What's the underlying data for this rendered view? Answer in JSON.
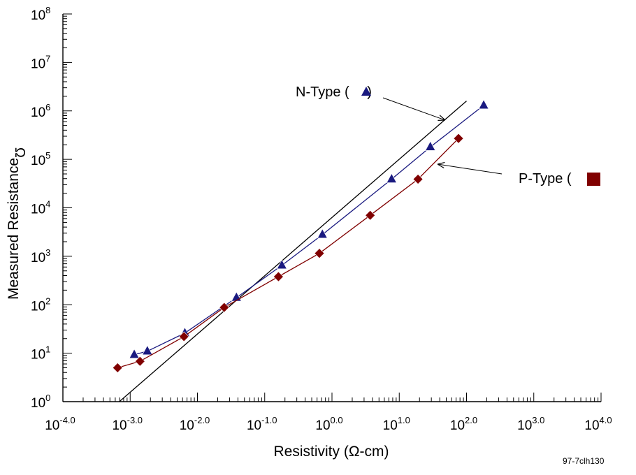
{
  "chart_data": {
    "type": "scatter",
    "xscale": "log",
    "yscale": "log",
    "xlim": [
      0.0001,
      10000
    ],
    "ylim": [
      1,
      100000000
    ],
    "xlabel": "Resistivity (Ω-cm)",
    "ylabel": "Measured Resistance",
    "ylabel_symbol": "Ʊ",
    "x_ticks": [
      {
        "base": "10",
        "exp": "-4.0"
      },
      {
        "base": "10",
        "exp": "-3.0"
      },
      {
        "base": "10",
        "exp": "-2.0"
      },
      {
        "base": "10",
        "exp": "-1.0"
      },
      {
        "base": "10",
        "exp": "0.0"
      },
      {
        "base": "10",
        "exp": "1.0"
      },
      {
        "base": "10",
        "exp": "2.0"
      },
      {
        "base": "10",
        "exp": "3.0"
      },
      {
        "base": "10",
        "exp": "4.0"
      }
    ],
    "y_ticks": [
      {
        "base": "10",
        "exp": "0"
      },
      {
        "base": "10",
        "exp": "1"
      },
      {
        "base": "10",
        "exp": "2"
      },
      {
        "base": "10",
        "exp": "3"
      },
      {
        "base": "10",
        "exp": "4"
      },
      {
        "base": "10",
        "exp": "5"
      },
      {
        "base": "10",
        "exp": "6"
      },
      {
        "base": "10",
        "exp": "7"
      },
      {
        "base": "10",
        "exp": "8"
      }
    ],
    "series": [
      {
        "name": "N-Type",
        "marker": "triangle",
        "color": "#1a1a80",
        "x": [
          0.00115,
          0.0018,
          0.0065,
          0.038,
          0.18,
          0.72,
          7.7,
          29,
          180
        ],
        "y": [
          9.3,
          11,
          26,
          140,
          650,
          2800,
          39000,
          180000,
          1300000
        ]
      },
      {
        "name": "P-Type",
        "marker": "diamond-square",
        "color": "#800000",
        "x": [
          0.00065,
          0.0014,
          0.0063,
          0.025,
          0.16,
          0.65,
          3.7,
          19,
          76
        ],
        "y": [
          5,
          6.8,
          22,
          88,
          380,
          1150,
          7000,
          39000,
          270000
        ]
      }
    ],
    "reference_line": {
      "color": "#000000",
      "points": [
        [
          0.00069,
          1
        ],
        [
          100,
          1600000
        ]
      ]
    },
    "annotations": {
      "n_type_label_prefix": "N-Type (",
      "n_type_label_suffix": " )",
      "p_type_label_prefix": "P-Type  (",
      "p_type_label_suffix": ")"
    },
    "grid": false
  },
  "figure_id": "97-7clh130"
}
